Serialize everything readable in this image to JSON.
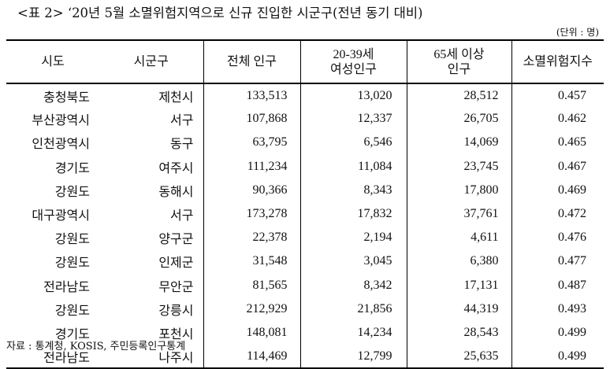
{
  "title": "<표 2>  ‘20년 5월 소멸위험지역으로 신규 진입한 시군구(전년 동기 대비)",
  "unit": "(단위 : 명)",
  "headers": {
    "sido": "시도",
    "sigungu": "시군구",
    "total": "전체 인구",
    "women_line1": "20-39세",
    "women_line2": "여성인구",
    "elderly_line1": "65세 이상",
    "elderly_line2": "인구",
    "index": "소멸위험지수"
  },
  "rows": [
    {
      "sido": "충청북도",
      "sigungu": "제천시",
      "total": "133,513",
      "women": "13,020",
      "elderly": "28,512",
      "index": "0.457"
    },
    {
      "sido": "부산광역시",
      "sigungu": "서구",
      "total": "107,868",
      "women": "12,337",
      "elderly": "26,705",
      "index": "0.462"
    },
    {
      "sido": "인천광역시",
      "sigungu": "동구",
      "total": "63,795",
      "women": "6,546",
      "elderly": "14,069",
      "index": "0.465"
    },
    {
      "sido": "경기도",
      "sigungu": "여주시",
      "total": "111,234",
      "women": "11,084",
      "elderly": "23,745",
      "index": "0.467"
    },
    {
      "sido": "강원도",
      "sigungu": "동해시",
      "total": "90,366",
      "women": "8,343",
      "elderly": "17,800",
      "index": "0.469"
    },
    {
      "sido": "대구광역시",
      "sigungu": "서구",
      "total": "173,278",
      "women": "17,832",
      "elderly": "37,761",
      "index": "0.472"
    },
    {
      "sido": "강원도",
      "sigungu": "양구군",
      "total": "22,378",
      "women": "2,194",
      "elderly": "4,611",
      "index": "0.476"
    },
    {
      "sido": "강원도",
      "sigungu": "인제군",
      "total": "31,548",
      "women": "3,045",
      "elderly": "6,380",
      "index": "0.477"
    },
    {
      "sido": "전라남도",
      "sigungu": "무안군",
      "total": "81,565",
      "women": "8,342",
      "elderly": "17,131",
      "index": "0.487"
    },
    {
      "sido": "강원도",
      "sigungu": "강릉시",
      "total": "212,929",
      "women": "21,856",
      "elderly": "44,319",
      "index": "0.493"
    },
    {
      "sido": "경기도",
      "sigungu": "포천시",
      "total": "148,081",
      "women": "14,234",
      "elderly": "28,543",
      "index": "0.499"
    },
    {
      "sido": "전라남도",
      "sigungu": "나주시",
      "total": "114,469",
      "women": "12,799",
      "elderly": "25,635",
      "index": "0.499"
    }
  ],
  "source": "자료 : 통계청, KOSIS, 주민등록인구통계"
}
